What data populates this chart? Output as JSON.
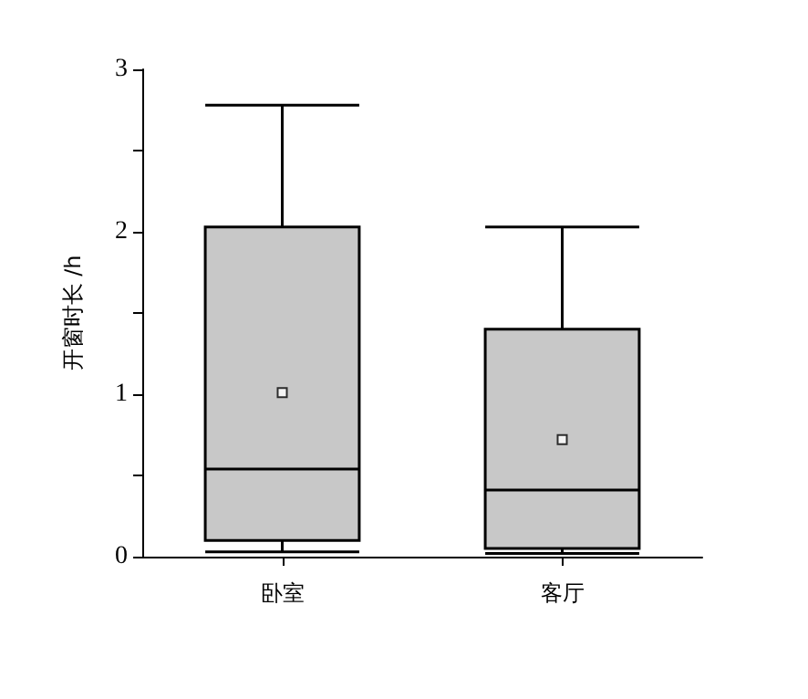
{
  "chart_data": {
    "type": "box",
    "ylabel": "开窗时长 /h",
    "categories": [
      "卧室",
      "客厅"
    ],
    "boxes": [
      {
        "low": 0.03,
        "q1": 0.1,
        "median": 0.54,
        "q3": 2.03,
        "high": 2.78,
        "mean": 1.01
      },
      {
        "low": 0.02,
        "q1": 0.05,
        "median": 0.41,
        "q3": 1.4,
        "high": 2.03,
        "mean": 0.72
      }
    ],
    "color": "#c8c8c8",
    "ylim": [
      0,
      3
    ],
    "yticks": [
      0,
      {
        "value": 0.5,
        "label": null
      },
      1,
      {
        "value": 1.5,
        "label": null
      },
      2,
      {
        "value": 2.5,
        "label": null
      },
      3
    ],
    "grid": false
  }
}
